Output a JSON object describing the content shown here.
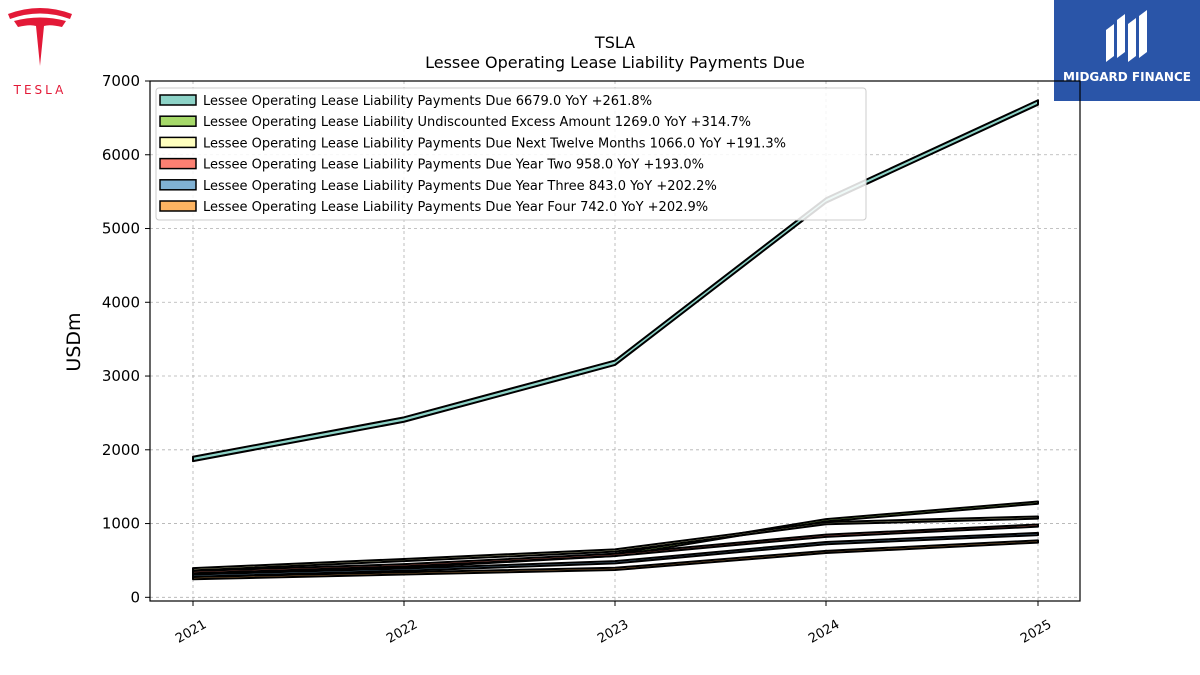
{
  "logos": {
    "left_brand": "TESLA",
    "right_brand": "MIDGARD FINANCE"
  },
  "colors": {
    "tesla_red": "#e31937",
    "midgard_blue": "#2a55a8"
  },
  "chart_data": {
    "type": "area",
    "title": "TSLA",
    "subtitle": "Lessee Operating Lease Liability Payments Due",
    "ylabel": "USDm",
    "xlabel": "",
    "categories": [
      "2021",
      "2022",
      "2023",
      "2024",
      "2025"
    ],
    "ylim": [
      -50,
      7000
    ],
    "yticks": [
      0,
      1000,
      2000,
      3000,
      4000,
      5000,
      6000,
      7000
    ],
    "grid": true,
    "legend_position": "top-left",
    "series": [
      {
        "name": "Lessee Operating Lease Liability Payments Due",
        "legend": "Lessee Operating Lease Liability Payments Due  6679.0 YoY +261.8%",
        "color": "#8dd3c7",
        "values": [
          1846,
          2380,
          3150,
          5350,
          6679
        ],
        "band": 60
      },
      {
        "name": "Lessee Operating Lease Liability Undiscounted Excess Amount",
        "legend": "Lessee Operating Lease Liability Undiscounted Excess Amount  1269.0 YoY +314.7%",
        "color": "#a6d96a",
        "values": [
          306,
          400,
          560,
          1030,
          1269
        ],
        "band": 30
      },
      {
        "name": "Lessee Operating Lease Liability Payments Due Next Twelve Months",
        "legend": "Lessee Operating Lease Liability Payments Due Next Twelve Months  1066.0 YoY +191.3%",
        "color": "#ffffbf",
        "values": [
          366,
          490,
          620,
          990,
          1066
        ],
        "band": 30
      },
      {
        "name": "Lessee Operating Lease Liability Payments Due Year Two",
        "legend": "Lessee Operating Lease Liability Payments Due Year Two  958.0 YoY +193.0%",
        "color": "#fb8072",
        "values": [
          327,
          420,
          560,
          820,
          958
        ],
        "band": 30
      },
      {
        "name": "Lessee Operating Lease Liability Payments Due Year Three",
        "legend": "Lessee Operating Lease Liability Payments Due Year Three  843.0 YoY +202.2%",
        "color": "#80b1d3",
        "values": [
          279,
          360,
          460,
          720,
          843
        ],
        "band": 30
      },
      {
        "name": "Lessee Operating Lease Liability Payments Due Year Four",
        "legend": "Lessee Operating Lease Liability Payments Due Year Four  742.0 YoY +202.9%",
        "color": "#fdb462",
        "values": [
          245,
          310,
          370,
          600,
          742
        ],
        "band": 30
      }
    ]
  }
}
